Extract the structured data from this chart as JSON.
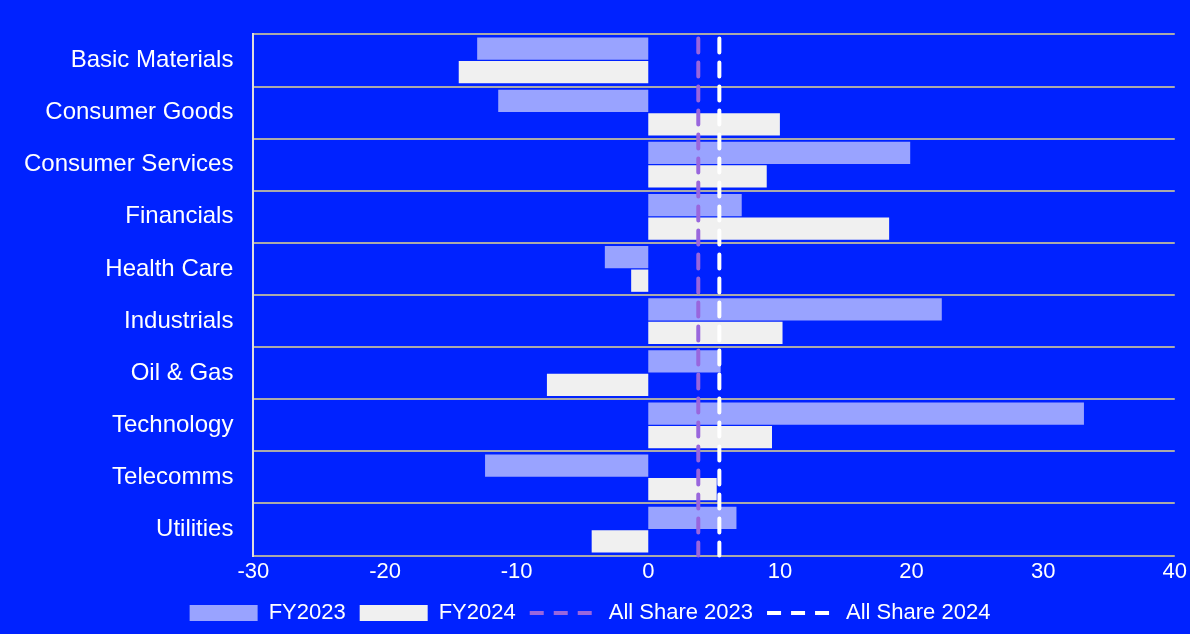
{
  "chart_data": {
    "type": "bar",
    "orientation": "horizontal",
    "categories": [
      "Basic Materials",
      "Consumer Goods",
      "Consumer Services",
      "Financials",
      "Health Care",
      "Industrials",
      "Oil & Gas",
      "Technology",
      "Telecomms",
      "Utilities"
    ],
    "series": [
      {
        "name": "FY2023",
        "color": "#99a3ff",
        "values": [
          -13.0,
          -11.4,
          19.9,
          7.1,
          -3.3,
          22.3,
          5.5,
          33.1,
          -12.4,
          6.7
        ]
      },
      {
        "name": "FY2024",
        "color": "#f0f0f0",
        "values": [
          -14.4,
          10.0,
          9.0,
          18.3,
          -1.3,
          10.2,
          -7.7,
          9.4,
          5.2,
          -4.3
        ]
      }
    ],
    "ref_lines": [
      {
        "axis": "x",
        "value": 3.8,
        "label": "All Share 2023",
        "color": "#9966dd",
        "line_style": "dashed"
      },
      {
        "axis": "x",
        "value": 5.4,
        "label": "All Share 2024",
        "color": "#ffffff",
        "line_style": "dashed"
      }
    ],
    "xlim": [
      -30,
      40
    ],
    "xticks": [
      -30,
      -20,
      -10,
      0,
      10,
      20,
      30,
      40
    ],
    "grid": "y",
    "legend": "bottom"
  }
}
